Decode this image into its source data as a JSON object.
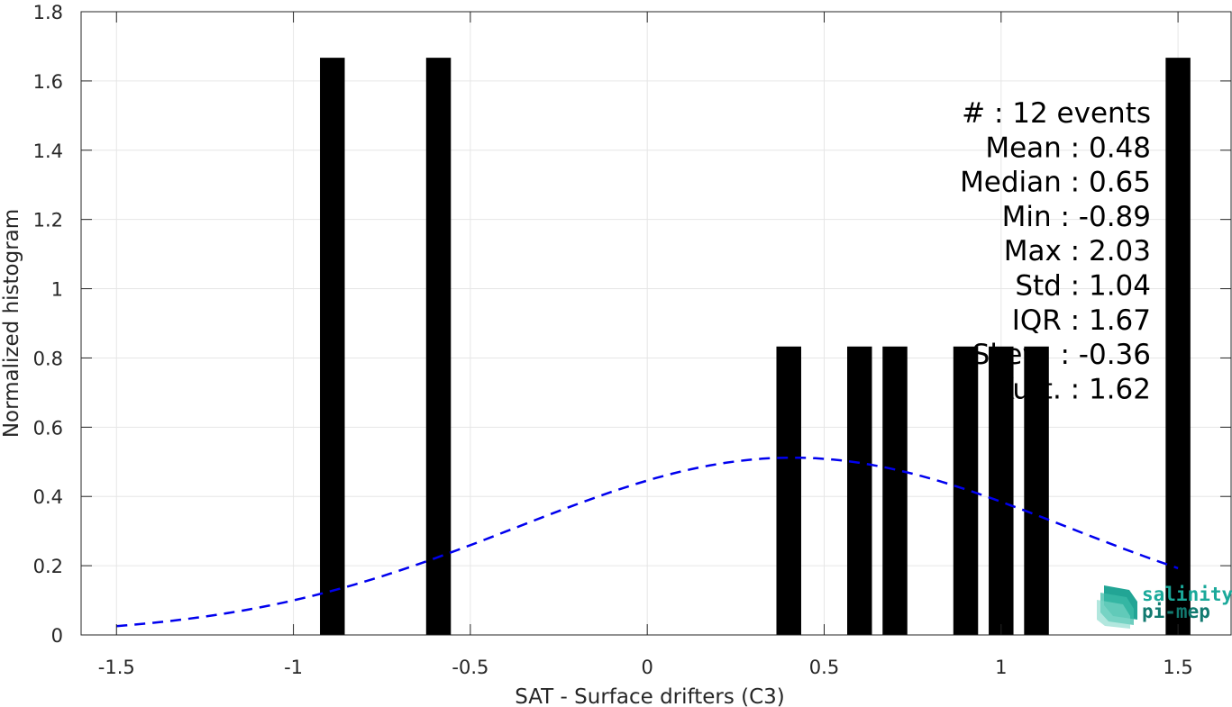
{
  "chart_data": {
    "type": "bar",
    "xlabel": "SAT - Surface drifters (C3)",
    "ylabel": "Normalized histogram",
    "xlim": [
      -1.6,
      1.65
    ],
    "ylim": [
      0,
      1.8
    ],
    "xticks": [
      -1.5,
      -1,
      -0.5,
      0,
      0.5,
      1,
      1.5
    ],
    "xtick_labels": [
      "-1.5",
      "-1",
      "-0.5",
      "0",
      "0.5",
      "1",
      "1.5"
    ],
    "yticks": [
      0,
      0.2,
      0.4,
      0.6,
      0.8,
      1,
      1.2,
      1.4,
      1.6,
      1.8
    ],
    "ytick_labels": [
      "0",
      "0.2",
      "0.4",
      "0.6",
      "0.8",
      "1",
      "1.2",
      "1.4",
      "1.6",
      "1.8"
    ],
    "grid": true,
    "bar_width": 0.07,
    "bars": [
      {
        "x": -0.89,
        "value": 1.667
      },
      {
        "x": -0.59,
        "value": 1.667
      },
      {
        "x": 0.4,
        "value": 0.833
      },
      {
        "x": 0.6,
        "value": 0.833
      },
      {
        "x": 0.7,
        "value": 0.833
      },
      {
        "x": 0.9,
        "value": 0.833
      },
      {
        "x": 1.0,
        "value": 0.833
      },
      {
        "x": 1.1,
        "value": 0.833
      },
      {
        "x": 1.5,
        "value": 1.667
      }
    ],
    "colors": {
      "bars": "#000000",
      "fit_curve": "#0000ee",
      "grid": "#e6e6e6",
      "axis": "#262626"
    },
    "fit_curve": {
      "style": "dashed",
      "x_range": [
        -1.5,
        1.5
      ],
      "mean": 0.41,
      "std": 0.78,
      "peak": 0.512
    },
    "stats": [
      "#  : 12 events",
      "Mean : 0.48",
      "Median : 0.65",
      "Min : -0.89",
      "Max : 2.03",
      "Std : 1.04",
      "IQR : 1.67",
      "Skew. : -0.36",
      "Kurt. : 1.62"
    ]
  },
  "logo": {
    "line1": "salinity",
    "line2": "pi-mep",
    "icon": "salinity-layers-icon",
    "color": "#1aa99a"
  }
}
